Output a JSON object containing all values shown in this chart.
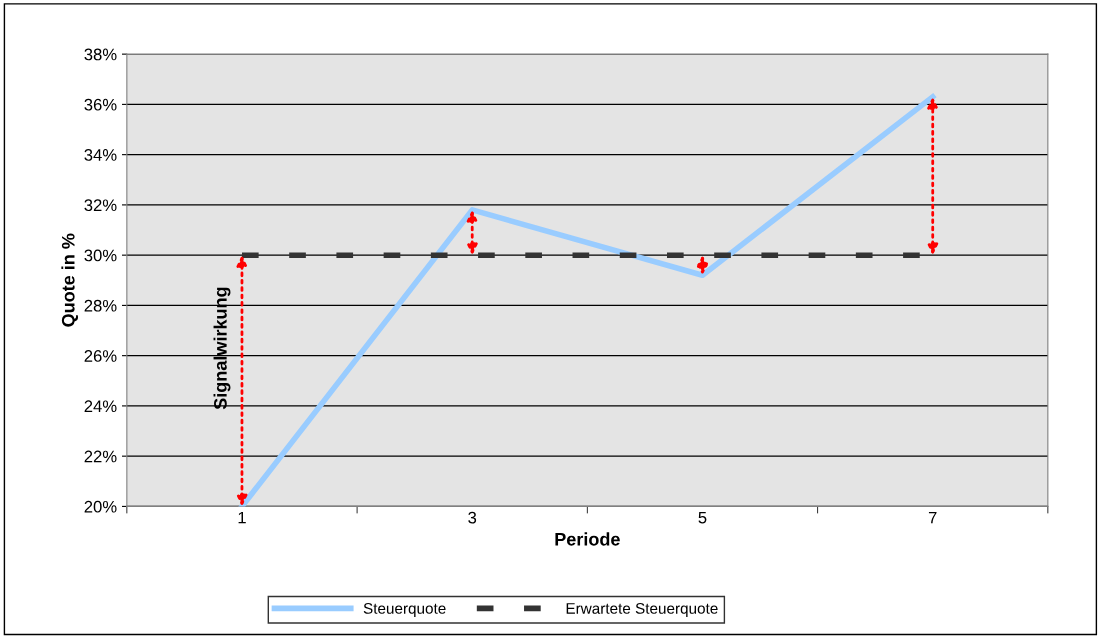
{
  "chart_data": {
    "type": "line",
    "xlabel": "Periode",
    "ylabel": "Quote in %",
    "categories": [
      "1",
      "3",
      "5",
      "7"
    ],
    "series": [
      {
        "name": "Steuerquote",
        "color": "#99ccff",
        "values": [
          20,
          31.8,
          29.2,
          36.3
        ]
      },
      {
        "name": "Erwartete Steuerquote",
        "color": "#333333",
        "values": [
          30,
          30,
          30,
          30
        ],
        "line_style": "dashed"
      }
    ],
    "ylim": [
      20,
      38
    ],
    "yticks": [
      {
        "value": 20,
        "label": "20%"
      },
      {
        "value": 22,
        "label": "22%"
      },
      {
        "value": 24,
        "label": "24%"
      },
      {
        "value": 26,
        "label": "26%"
      },
      {
        "value": 28,
        "label": "28%"
      },
      {
        "value": 30,
        "label": "30%"
      },
      {
        "value": 32,
        "label": "32%"
      },
      {
        "value": 34,
        "label": "34%"
      },
      {
        "value": 36,
        "label": "36%"
      },
      {
        "value": 38,
        "label": "38%"
      }
    ],
    "grid": "y",
    "legend": "bottom",
    "marker": "none",
    "annotations": [
      "Signalwirkung"
    ]
  }
}
